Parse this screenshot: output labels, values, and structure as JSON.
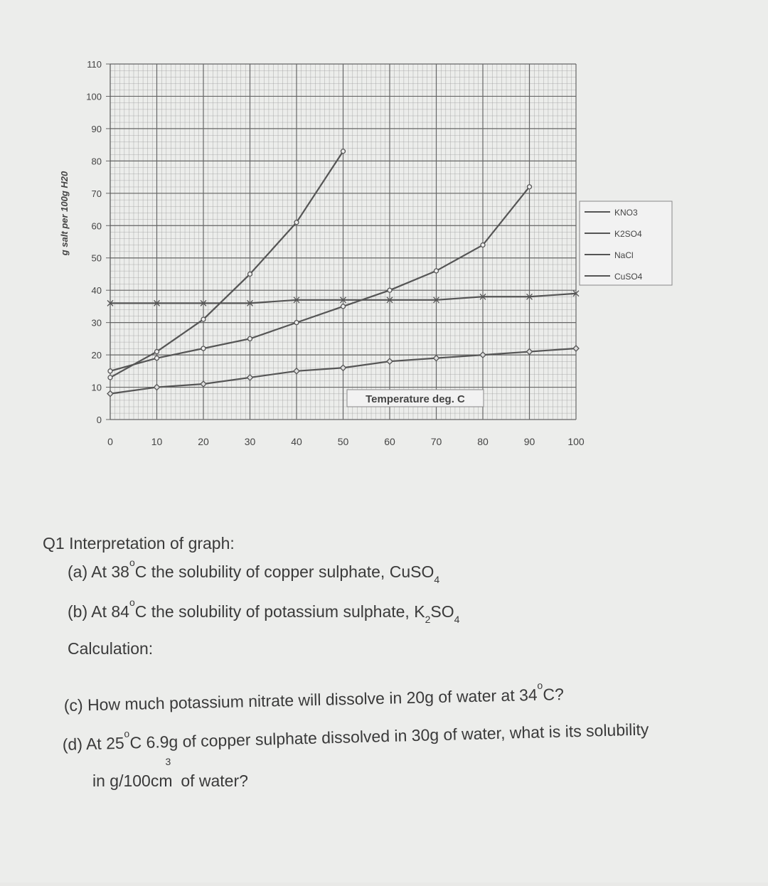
{
  "chart_data": {
    "type": "line",
    "y_label": "g salt per 100g H20",
    "x_label": "Temperature deg. C",
    "x": [
      0,
      10,
      20,
      30,
      40,
      50,
      60,
      70,
      80,
      90,
      100
    ],
    "series": [
      {
        "name": "KNO3",
        "color": "#555555",
        "marker": "circle",
        "values": [
          13,
          21,
          31,
          45,
          61,
          83,
          null,
          null,
          null,
          null,
          null
        ]
      },
      {
        "name": "K2SO4",
        "color": "#555555",
        "marker": "diamond",
        "values": [
          8,
          10,
          11,
          13,
          15,
          16,
          18,
          19,
          20,
          21,
          22
        ]
      },
      {
        "name": "NaCl",
        "color": "#555555",
        "marker": "x",
        "values": [
          36,
          36,
          36,
          36,
          37,
          37,
          37,
          37,
          38,
          38,
          39
        ]
      },
      {
        "name": "CuSO4",
        "color": "#555555",
        "marker": "circle",
        "values": [
          15,
          19,
          22,
          25,
          30,
          35,
          40,
          46,
          54,
          72,
          null
        ]
      }
    ],
    "xlim": [
      0,
      100
    ],
    "xticks": [
      0,
      10,
      20,
      30,
      40,
      50,
      60,
      70,
      80,
      90,
      100
    ],
    "ylim": [
      0,
      110
    ],
    "yticks": [
      0,
      10,
      20,
      30,
      40,
      50,
      60,
      70,
      80,
      90,
      100,
      110
    ],
    "grid": true,
    "legend": "right"
  },
  "questions": {
    "heading": "Q1 Interpretation of graph:",
    "a": [
      "(a) At 38",
      "o",
      "C the solubility of copper sulphate, CuSO",
      "4"
    ],
    "b": [
      "(b) At 84",
      "o",
      "C the solubility of potassium sulphate, K",
      "2",
      "SO",
      "4"
    ],
    "calculation": "Calculation:",
    "c": [
      "(c) How much potassium nitrate will dissolve in 20g of water at 34",
      "o",
      "C?"
    ],
    "d": [
      "(d) At 25",
      "o",
      "C 6.9g of copper sulphate dissolved in 30g of water, what is its solubility"
    ],
    "e": [
      "in g/100cm",
      "3",
      "of water?"
    ]
  }
}
